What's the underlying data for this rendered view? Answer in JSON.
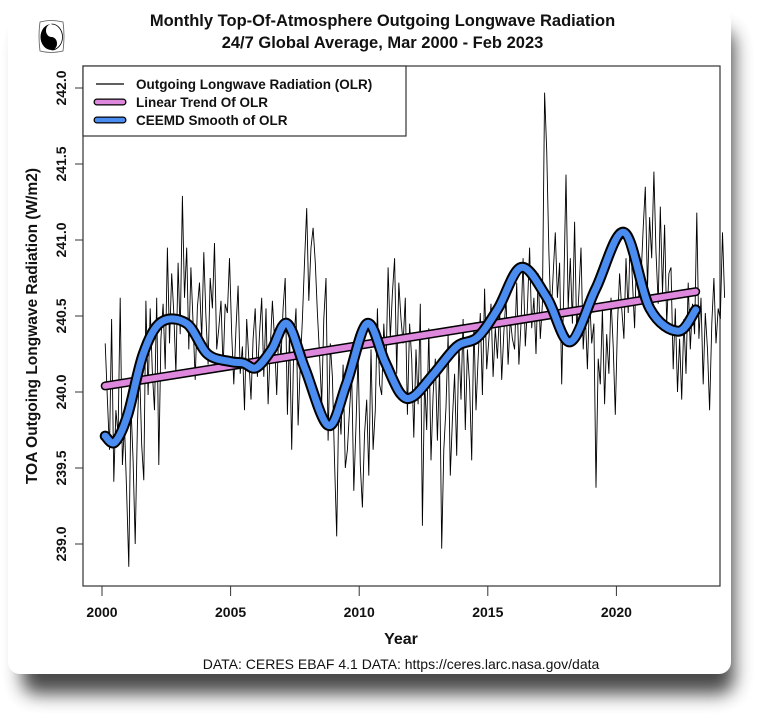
{
  "chart_data": {
    "type": "line",
    "title": "Monthly Top-Of-Atmosphere Outgoing Longwave Radiation",
    "subtitle": "24/7 Global Average, Mar 2000 - Feb 2023",
    "xlabel": "Year",
    "ylabel": "TOA Outgoing Longwave Radiation (W/m2)",
    "caption": "DATA: CERES EBAF 4.1 DATA: https://ceres.larc.nasa.gov/data",
    "xlim": [
      1999.95,
      2023.45
    ],
    "ylim": [
      238.7,
      242.1
    ],
    "x_ticks": [
      2000,
      2005,
      2010,
      2015,
      2020
    ],
    "x_tick_labels": [
      "2000",
      "2005",
      "2010",
      "2015",
      "2020"
    ],
    "y_ticks": [
      239.0,
      239.5,
      240.0,
      240.5,
      241.0,
      241.5,
      242.0
    ],
    "y_tick_labels": [
      "239.0",
      "239.5",
      "240.0",
      "240.5",
      "241.0",
      "241.5",
      "242.0"
    ],
    "grid": false,
    "legend_position": "top-left",
    "start_year": 2000.125,
    "step_years": 0.08333,
    "series": [
      {
        "name": "Outgoing Longwave Radiation (OLR)",
        "color": "#000000",
        "style": "thin",
        "values": [
          240.32,
          239.95,
          239.62,
          240.48,
          239.41,
          239.88,
          239.72,
          240.62,
          239.52,
          239.78,
          239.35,
          238.85,
          239.92,
          239.55,
          239.0,
          239.78,
          240.18,
          239.65,
          239.42,
          240.6,
          239.98,
          240.55,
          240.12,
          239.88,
          240.62,
          239.52,
          240.35,
          240.58,
          240.15,
          240.95,
          240.32,
          240.78,
          240.52,
          240.12,
          240.85,
          240.38,
          241.29,
          240.62,
          240.95,
          240.28,
          240.82,
          240.45,
          240.08,
          240.56,
          240.72,
          240.35,
          240.92,
          240.5,
          240.18,
          240.75,
          240.55,
          240.98,
          240.28,
          240.42,
          240.6,
          240.15,
          240.58,
          240.52,
          240.88,
          240.38,
          240.05,
          240.42,
          240.7,
          240.12,
          240.3,
          239.88,
          240.48,
          240.22,
          239.95,
          240.35,
          240.55,
          240.1,
          240.38,
          240.62,
          240.1,
          240.55,
          239.92,
          240.28,
          240.6,
          240.35,
          239.98,
          240.42,
          240.22,
          240.55,
          240.75,
          239.85,
          240.4,
          239.62,
          240.32,
          240.55,
          239.78,
          240.18,
          240.48,
          240.85,
          241.21,
          240.6,
          240.95,
          241.08,
          240.85,
          240.52,
          240.25,
          239.92,
          240.48,
          240.75,
          239.68,
          240.32,
          240.1,
          239.55,
          239.05,
          239.95,
          239.72,
          240.18,
          239.5,
          239.62,
          239.88,
          240.12,
          239.35,
          239.78,
          240.25,
          239.52,
          239.24,
          239.72,
          239.95,
          239.45,
          240.28,
          239.62,
          239.88,
          240.55,
          240.05,
          239.98,
          240.45,
          240.15,
          240.82,
          240.35,
          240.65,
          240.88,
          240.12,
          240.72,
          240.48,
          240.32,
          240.62,
          239.85,
          240.45,
          240.22,
          239.7,
          240.28,
          239.92,
          240.58,
          239.12,
          240.08,
          239.75,
          240.42,
          239.55,
          239.98,
          240.22,
          239.68,
          240.18,
          238.97,
          239.62,
          239.9,
          240.38,
          239.45,
          239.82,
          240.12,
          239.58,
          240.32,
          239.95,
          240.48,
          239.75,
          240.28,
          240.05,
          239.55,
          240.45,
          239.88,
          240.22,
          240.52,
          239.98,
          240.68,
          240.15,
          240.35,
          240.58,
          240.1,
          240.42,
          240.22,
          240.55,
          240.08,
          240.4,
          240.62,
          240.18,
          240.48,
          240.35,
          240.28,
          240.72,
          240.18,
          240.45,
          240.88,
          240.3,
          240.55,
          240.95,
          240.42,
          240.62,
          240.25,
          240.78,
          240.35,
          240.58,
          241.97,
          241.59,
          240.92,
          240.48,
          240.78,
          241.05,
          240.62,
          240.85,
          240.05,
          240.72,
          241.43,
          240.55,
          240.88,
          240.45,
          241.12,
          240.38,
          240.65,
          240.95,
          240.28,
          240.52,
          240.15,
          240.62,
          240.32,
          240.45,
          239.37,
          240.22,
          240.05,
          240.55,
          239.92,
          240.38,
          240.12,
          240.62,
          240.3,
          239.85,
          240.45,
          240.78,
          240.55,
          240.35,
          240.88,
          240.52,
          241.05,
          240.72,
          240.42,
          240.95,
          240.62,
          240.75,
          241.08,
          241.35,
          240.68,
          241.15,
          240.88,
          241.45,
          240.92,
          240.58,
          241.22,
          240.65,
          241.1,
          240.45,
          240.78,
          240.82,
          240.15,
          240.55,
          240.0,
          240.35,
          239.95,
          240.48,
          240.12,
          240.72,
          240.28,
          240.58,
          240.38,
          241.18,
          240.35,
          240.62,
          240.05,
          240.52,
          240.28,
          239.88,
          240.45,
          240.75,
          240.32,
          240.55,
          240.48,
          241.05,
          240.62
        ]
      },
      {
        "name": "Linear Trend Of OLR",
        "color": "#dd88dd",
        "style": "thick",
        "x": [
          2000.125,
          2023.083
        ],
        "values": [
          240.04,
          240.66
        ]
      },
      {
        "name": "CEEMD Smooth of OLR",
        "color": "#4a8cf0",
        "style": "thick",
        "x": [
          2000.125,
          2000.5,
          2001.0,
          2001.6,
          2002.3,
          2003.3,
          2004.1,
          2005.0,
          2005.5,
          2006.0,
          2006.6,
          2007.2,
          2007.9,
          2008.8,
          2009.5,
          2010.3,
          2011.0,
          2011.6,
          2012.1,
          2012.9,
          2013.8,
          2014.6,
          2015.4,
          2016.3,
          2017.3,
          2018.2,
          2019.2,
          2020.3,
          2021.3,
          2022.4,
          2023.083
        ],
        "values": [
          239.71,
          239.67,
          239.85,
          240.25,
          240.46,
          240.45,
          240.25,
          240.2,
          240.19,
          240.16,
          240.28,
          240.45,
          240.15,
          239.78,
          240.05,
          240.45,
          240.2,
          239.99,
          239.97,
          240.12,
          240.3,
          240.36,
          240.55,
          240.82,
          240.62,
          240.33,
          240.68,
          241.05,
          240.55,
          240.4,
          240.54
        ]
      }
    ]
  }
}
